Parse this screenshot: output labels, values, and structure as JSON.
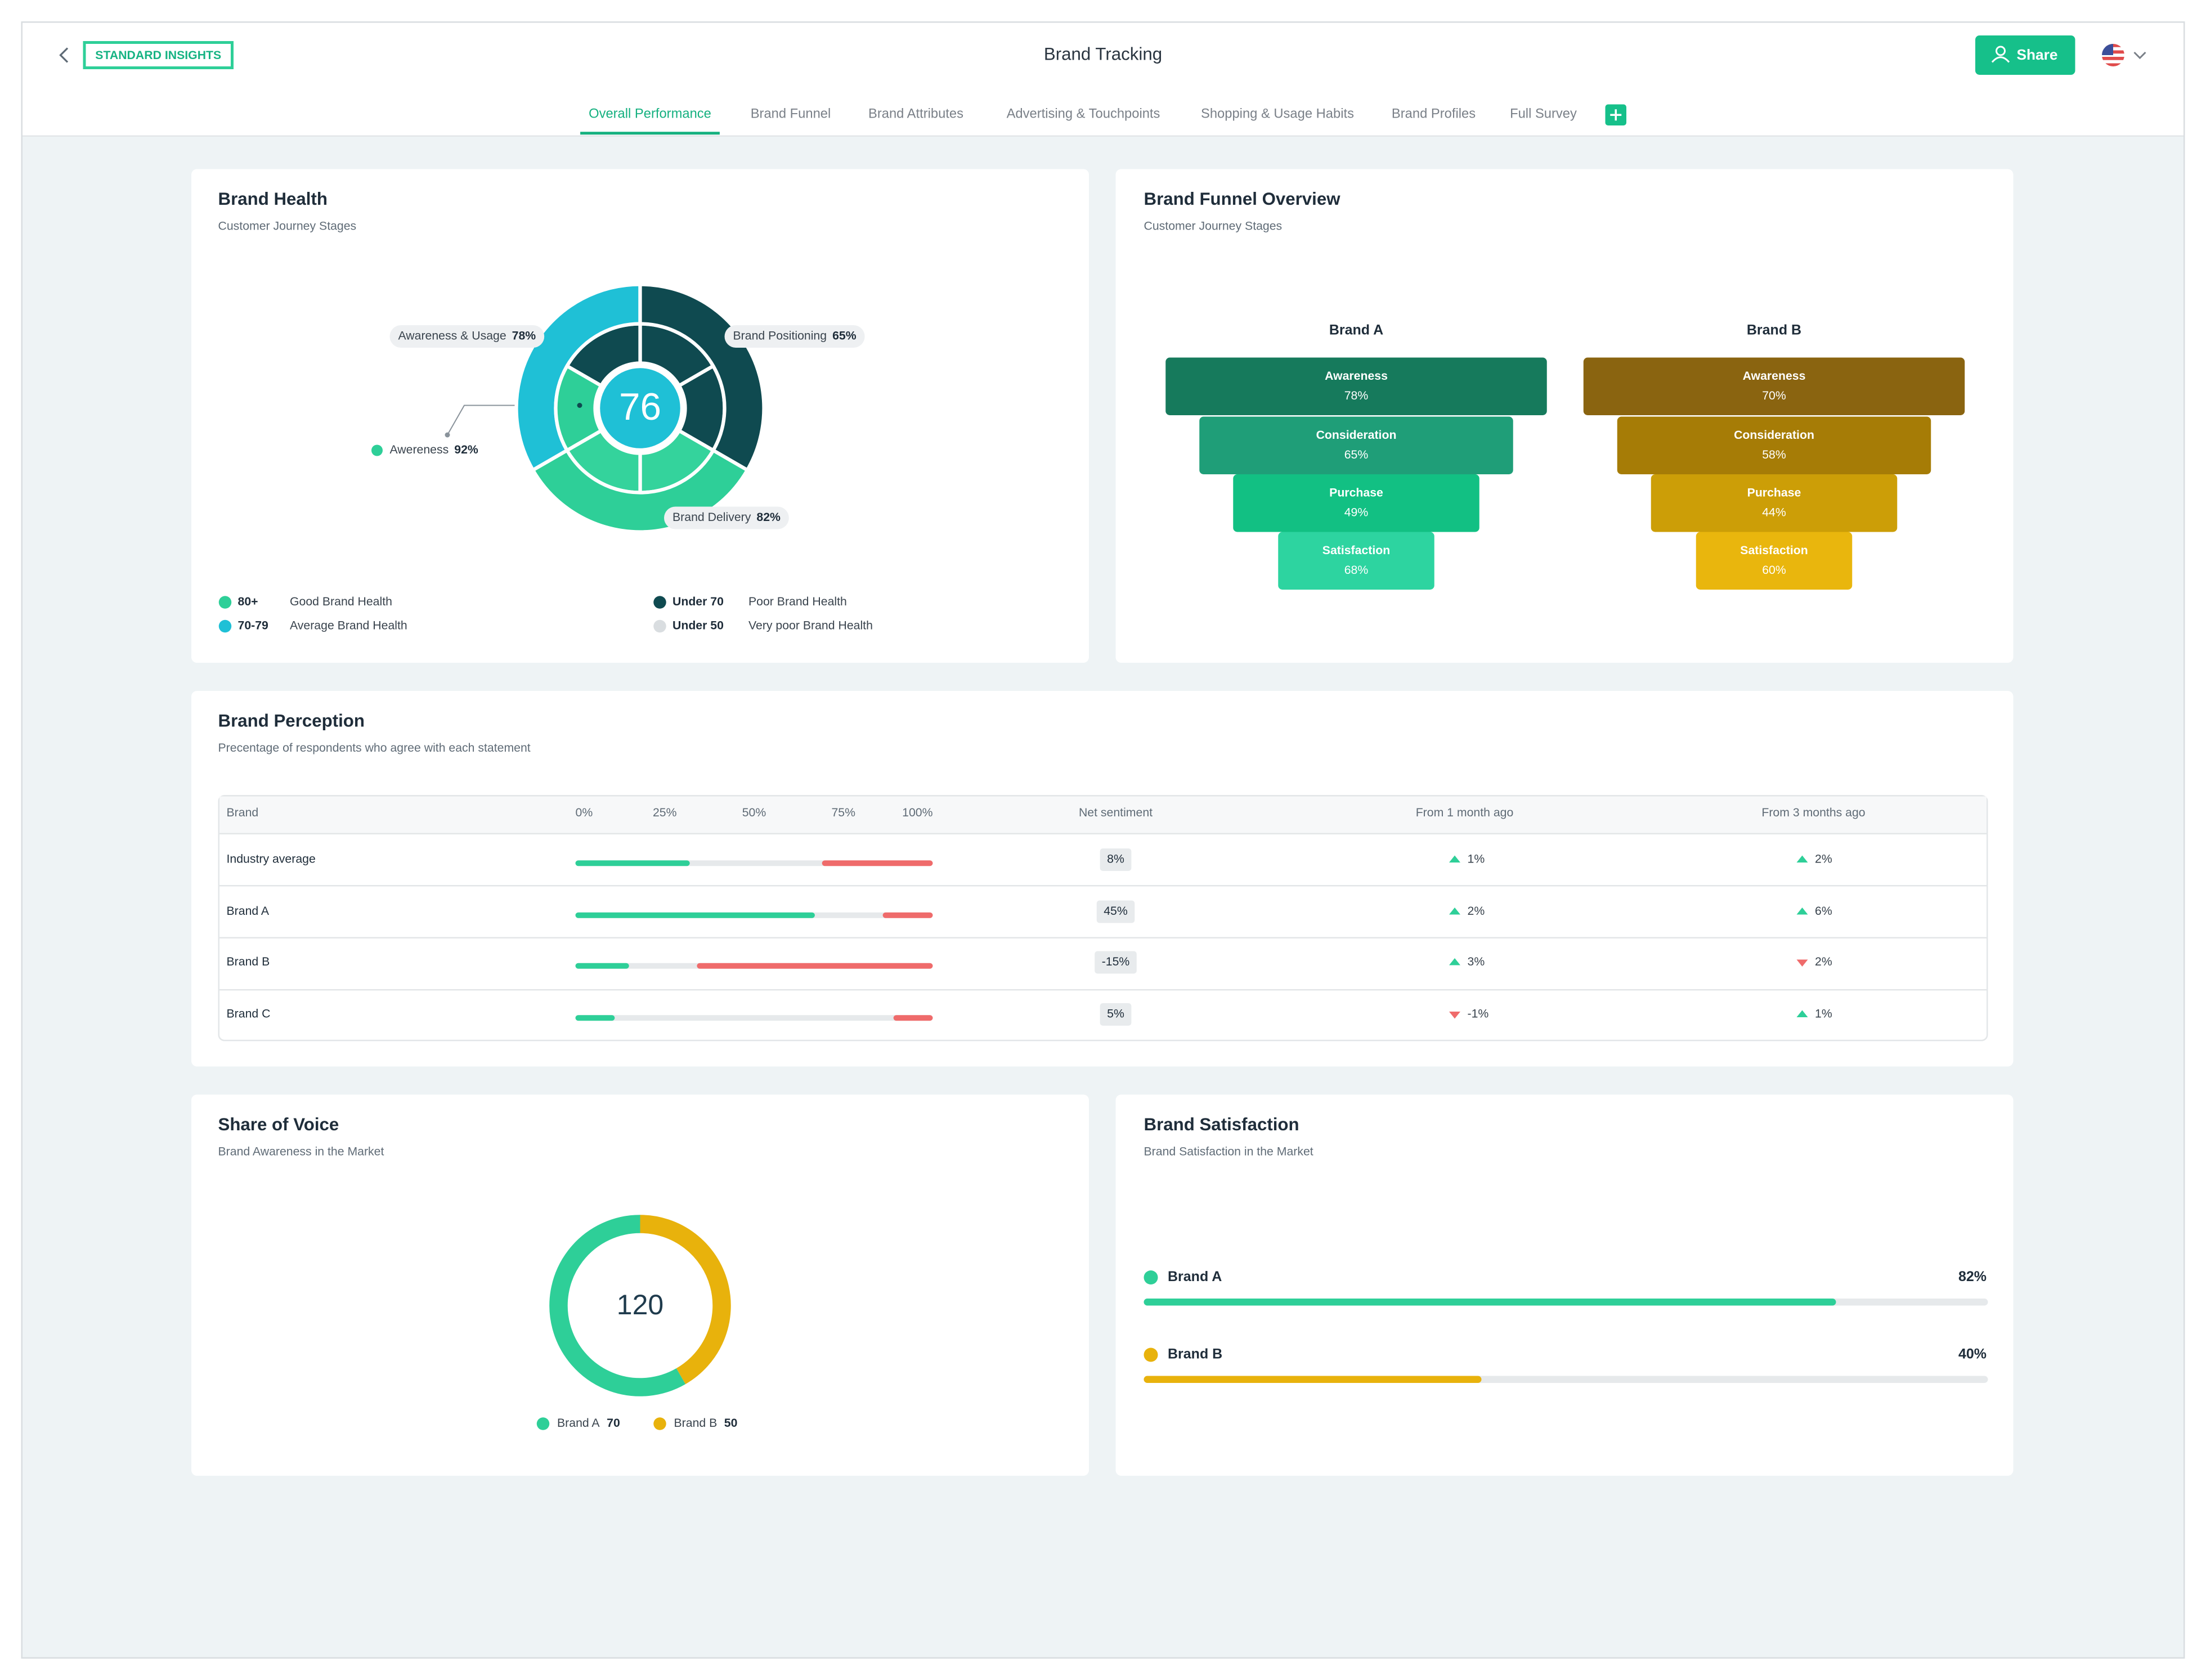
{
  "header": {
    "badge": "STANDARD INSIGHTS",
    "title": "Brand Tracking",
    "share_button": "Share"
  },
  "tabs": {
    "items": [
      "Overall Performance",
      "Brand Funnel",
      "Brand Attributes",
      "Advertising & Touchpoints",
      "Shopping & Usage Habits",
      "Brand Profiles",
      "Full Survey"
    ],
    "active": 0
  },
  "brand_health": {
    "title": "Brand Health",
    "subtitle": "Customer Journey Stages",
    "score": 76,
    "segments": [
      {
        "name": "Awareness & Usage",
        "value": 78,
        "label": "78%",
        "ring": "outer",
        "color": "#1fc0d6"
      },
      {
        "name": "Brand Positioning",
        "value": 65,
        "label": "65%",
        "ring": "outer",
        "color": "#0f4a50"
      },
      {
        "name": "Brand Delivery",
        "value": 82,
        "label": "82%",
        "ring": "outer",
        "color": "#2ecf98"
      },
      {
        "name": "Awereness",
        "value": 92,
        "label": "92%",
        "ring": "inner",
        "color": "#2ecf98"
      }
    ],
    "legend": [
      {
        "range": "80+",
        "text": "Good Brand Health",
        "color": "#2ecf98"
      },
      {
        "range": "70-79",
        "text": "Average Brand Health",
        "color": "#1fc0d6"
      },
      {
        "range": "Under 70",
        "text": "Poor Brand Health",
        "color": "#0f4a50"
      },
      {
        "range": "Under 50",
        "text": "Very poor Brand Health",
        "color": "#d9dde0"
      }
    ]
  },
  "funnel": {
    "title": "Brand Funnel Overview",
    "subtitle": "Customer Journey Stages",
    "brands": [
      {
        "name": "Brand A",
        "stages": [
          {
            "name": "Awareness",
            "label": "78%",
            "color": "#167a5c"
          },
          {
            "name": "Consideration",
            "label": "65%",
            "color": "#1f9e78"
          },
          {
            "name": "Purchase",
            "label": "49%",
            "color": "#12c083"
          },
          {
            "name": "Satisfaction",
            "label": "68%",
            "color": "#2dd4a0"
          }
        ]
      },
      {
        "name": "Brand B",
        "stages": [
          {
            "name": "Awareness",
            "label": "70%",
            "color": "#8a6410"
          },
          {
            "name": "Consideration",
            "label": "58%",
            "color": "#a67c06"
          },
          {
            "name": "Purchase",
            "label": "44%",
            "color": "#cc9e07"
          },
          {
            "name": "Satisfaction",
            "label": "60%",
            "color": "#e9b60d"
          }
        ]
      }
    ]
  },
  "perception": {
    "title": "Brand Perception",
    "subtitle": "Precentage of respondents who agree with each statement",
    "columns": [
      "Brand",
      "Net sentiment",
      "From 1 month ago",
      "From 3 months ago"
    ],
    "scale": [
      {
        "value": 0,
        "label": "0%"
      },
      {
        "value": 25,
        "label": "25%"
      },
      {
        "value": 50,
        "label": "50%"
      },
      {
        "value": 75,
        "label": "75%"
      },
      {
        "value": 100,
        "label": "100%"
      }
    ],
    "positive_color": "#2ecf98",
    "negative_color": "#ef6b6b",
    "rows": [
      {
        "brand": "Industry average",
        "positive": 32,
        "negative": 31,
        "net": "8%",
        "month": {
          "label": "1%",
          "direction": "up"
        },
        "quarter": {
          "label": "2%",
          "direction": "up"
        }
      },
      {
        "brand": "Brand A",
        "positive": 67,
        "negative": 14,
        "net": "45%",
        "month": {
          "label": "2%",
          "direction": "up"
        },
        "quarter": {
          "label": "6%",
          "direction": "up"
        }
      },
      {
        "brand": "Brand B",
        "positive": 15,
        "negative": 66,
        "net": "-15%",
        "month": {
          "label": "3%",
          "direction": "up"
        },
        "quarter": {
          "label": "2%",
          "direction": "down"
        }
      },
      {
        "brand": "Brand C",
        "positive": 11,
        "negative": 11,
        "net": "5%",
        "month": {
          "label": "-1%",
          "direction": "down"
        },
        "quarter": {
          "label": "1%",
          "direction": "up"
        }
      }
    ]
  },
  "share_of_voice": {
    "title": "Share of Voice",
    "subtitle": "Brand Awareness in the Market",
    "total": 120,
    "series": [
      {
        "name": "Brand A",
        "value": 70,
        "color": "#2ecf98"
      },
      {
        "name": "Brand B",
        "value": 50,
        "color": "#e8b20c"
      }
    ]
  },
  "satisfaction": {
    "title": "Brand Satisfaction",
    "subtitle": "Brand Satisfaction in the Market",
    "xlim": [
      0,
      100
    ],
    "series": [
      {
        "name": "Brand A",
        "value": 82,
        "label": "82%",
        "color": "#2ecf98"
      },
      {
        "name": "Brand B",
        "value": 40,
        "label": "40%",
        "color": "#e8b20c"
      }
    ]
  }
}
